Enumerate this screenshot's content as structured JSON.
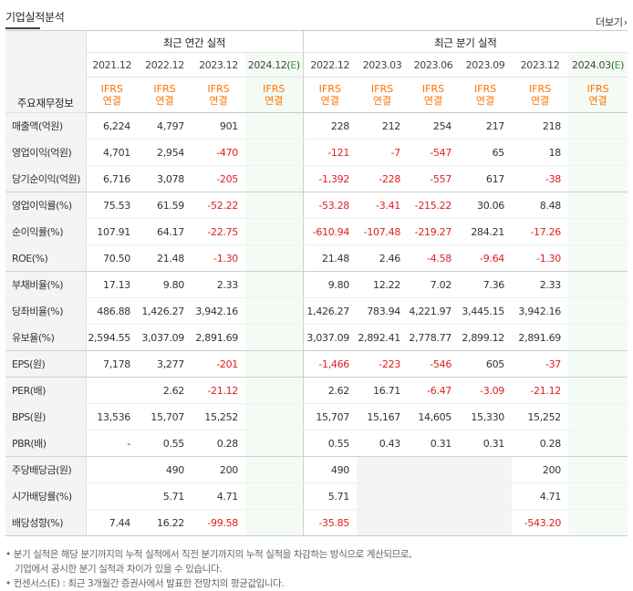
{
  "header": {
    "title": "기업실적분석",
    "more_label": "더보기",
    "more_chevron": "›"
  },
  "table": {
    "row_header": "주요재무정보",
    "annual_title": "최근 연간 실적",
    "quarter_title": "최근 분기 실적",
    "annual_periods": [
      "2021.12",
      "2022.12",
      "2023.12",
      "2024.12(E)"
    ],
    "quarter_periods": [
      "2022.12",
      "2023.03",
      "2023.06",
      "2023.09",
      "2023.12",
      "2024.03(E)"
    ],
    "basis": [
      "IFRS\n연결",
      "IFRS\n연결",
      "IFRS\n연결",
      "IFRS\n연결",
      "IFRS\n연결",
      "IFRS\n연결",
      "IFRS\n연결",
      "IFRS\n연결",
      "IFRS\n연결",
      "IFRS\n연결"
    ],
    "rows": [
      {
        "label": "매출액(억원)",
        "values": [
          "6,224",
          "4,797",
          "901",
          "",
          "228",
          "212",
          "254",
          "217",
          "218",
          ""
        ]
      },
      {
        "label": "영업이익(억원)",
        "values": [
          "4,701",
          "2,954",
          "-470",
          "",
          "-121",
          "-7",
          "-547",
          "65",
          "18",
          ""
        ]
      },
      {
        "label": "당기순이익(억원)",
        "values": [
          "6,716",
          "3,078",
          "-205",
          "",
          "-1,392",
          "-228",
          "-557",
          "617",
          "-38",
          ""
        ]
      },
      {
        "label": "영업이익률(%)",
        "values": [
          "75.53",
          "61.59",
          "-52.22",
          "",
          "-53.28",
          "-3.41",
          "-215.22",
          "30.06",
          "8.48",
          ""
        ]
      },
      {
        "label": "순이익률(%)",
        "values": [
          "107.91",
          "64.17",
          "-22.75",
          "",
          "-610.94",
          "-107.48",
          "-219.27",
          "284.21",
          "-17.26",
          ""
        ]
      },
      {
        "label": "ROE(%)",
        "values": [
          "70.50",
          "21.48",
          "-1.30",
          "",
          "21.48",
          "2.46",
          "-4.58",
          "-9.64",
          "-1.30",
          ""
        ]
      },
      {
        "label": "부채비율(%)",
        "values": [
          "17.13",
          "9.80",
          "2.33",
          "",
          "9.80",
          "12.22",
          "7.02",
          "7.36",
          "2.33",
          ""
        ]
      },
      {
        "label": "당좌비율(%)",
        "values": [
          "486.88",
          "1,426.27",
          "3,942.16",
          "",
          "1,426.27",
          "783.94",
          "4,221.97",
          "3,445.15",
          "3,942.16",
          ""
        ]
      },
      {
        "label": "유보율(%)",
        "values": [
          "2,594.55",
          "3,037.09",
          "2,891.69",
          "",
          "3,037.09",
          "2,892.41",
          "2,778.77",
          "2,899.12",
          "2,891.69",
          ""
        ]
      },
      {
        "label": "EPS(원)",
        "values": [
          "7,178",
          "3,277",
          "-201",
          "",
          "-1,466",
          "-223",
          "-546",
          "605",
          "-37",
          ""
        ]
      },
      {
        "label": "PER(배)",
        "values": [
          "",
          "2.62",
          "-21.12",
          "",
          "2.62",
          "16.71",
          "-6.47",
          "-3.09",
          "-21.12",
          ""
        ]
      },
      {
        "label": "BPS(원)",
        "values": [
          "13,536",
          "15,707",
          "15,252",
          "",
          "15,707",
          "15,167",
          "14,605",
          "15,330",
          "15,252",
          ""
        ]
      },
      {
        "label": "PBR(배)",
        "values": [
          "-",
          "0.55",
          "0.28",
          "",
          "0.55",
          "0.43",
          "0.31",
          "0.31",
          "0.28",
          ""
        ]
      },
      {
        "label": "주당배당금(원)",
        "values": [
          "",
          "490",
          "200",
          "",
          "490",
          "",
          "",
          "",
          "200",
          ""
        ]
      },
      {
        "label": "시가배당률(%)",
        "values": [
          "",
          "5.71",
          "4.71",
          "",
          "5.71",
          "",
          "",
          "",
          "4.71",
          ""
        ]
      },
      {
        "label": "배당성향(%)",
        "values": [
          "7.44",
          "16.22",
          "-99.58",
          "",
          "-35.85",
          "",
          "",
          "",
          "-543.20",
          ""
        ]
      }
    ]
  },
  "notes": {
    "line1": "분기 실적은 해당 분기까지의 누적 실적에서 직전 분기까지의 누적 실적을 차감하는 방식으로 계산되므로,",
    "line2": "기업에서 공시한 분기 실적과 차이가 있을 수 있습니다.",
    "line3": "컨센서스(E) : 최근 3개월간 증권사에서 발표한 전망치의 평균값입니다.",
    "bullet": "•"
  },
  "colors": {
    "negative": "#e01e1e",
    "ifrs": "#ff7200",
    "estimate": "#39a236"
  }
}
